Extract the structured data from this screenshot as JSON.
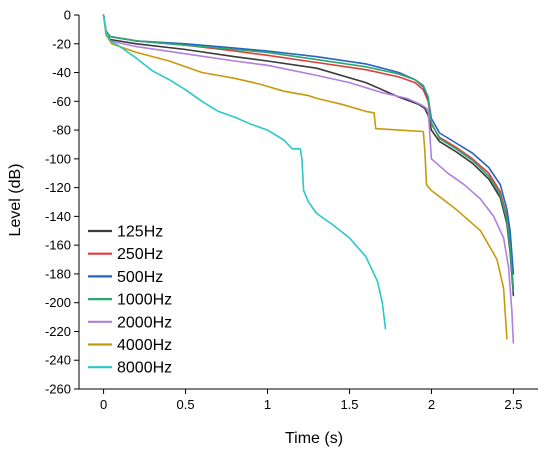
{
  "chart_data": {
    "type": "line",
    "title": "",
    "xlabel": "Time (s)",
    "ylabel": "Level (dB)",
    "xlim": [
      -0.15,
      2.65
    ],
    "ylim": [
      -260,
      0
    ],
    "xticks": [
      0,
      0.5,
      1,
      1.5,
      2,
      2.5
    ],
    "xtick_labels": [
      "0",
      "0.5",
      "1",
      "1.5",
      "2",
      "2.5"
    ],
    "yticks": [
      0,
      -20,
      -40,
      -60,
      -80,
      -100,
      -120,
      -140,
      -160,
      -180,
      -200,
      -220,
      -240,
      -260
    ],
    "ytick_labels": [
      "0",
      "-20",
      "-40",
      "-60",
      "-80",
      "-100",
      "-120",
      "-140",
      "-160",
      "-180",
      "-200",
      "-220",
      "-240",
      "-260"
    ],
    "grid": false,
    "legend_position": "bottom-left",
    "series": [
      {
        "name": "125Hz",
        "color": "#3a3a3a",
        "x": [
          0,
          0.005,
          0.015,
          0.04,
          0.2,
          0.5,
          0.8,
          1.0,
          1.3,
          1.6,
          1.8,
          1.92,
          1.96,
          1.98,
          2.0,
          2.05,
          2.15,
          2.25,
          2.35,
          2.42,
          2.46,
          2.48,
          2.5
        ],
        "y": [
          0,
          -4,
          -12,
          -17,
          -20,
          -24,
          -29,
          -32,
          -37,
          -47,
          -57,
          -62,
          -65,
          -70,
          -80,
          -88,
          -95,
          -103,
          -114,
          -127,
          -145,
          -165,
          -195
        ]
      },
      {
        "name": "250Hz",
        "color": "#e53a3a",
        "x": [
          0,
          0.005,
          0.015,
          0.04,
          0.2,
          0.5,
          0.8,
          1.0,
          1.3,
          1.6,
          1.8,
          1.9,
          1.95,
          1.98,
          2.0,
          2.05,
          2.15,
          2.25,
          2.35,
          2.42,
          2.46,
          2.48,
          2.5
        ],
        "y": [
          0,
          -4,
          -11,
          -15,
          -18,
          -21,
          -25,
          -28,
          -33,
          -38,
          -43,
          -47,
          -52,
          -60,
          -76,
          -85,
          -92,
          -100,
          -110,
          -123,
          -140,
          -160,
          -190
        ]
      },
      {
        "name": "500Hz",
        "color": "#2464c2",
        "x": [
          0,
          0.005,
          0.015,
          0.04,
          0.2,
          0.5,
          0.8,
          1.0,
          1.3,
          1.6,
          1.8,
          1.9,
          1.95,
          1.98,
          2.0,
          2.05,
          2.15,
          2.25,
          2.35,
          2.42,
          2.46,
          2.48,
          2.5
        ],
        "y": [
          0,
          -4,
          -11,
          -15,
          -18,
          -20,
          -23,
          -25,
          -29,
          -34,
          -40,
          -45,
          -50,
          -58,
          -72,
          -82,
          -89,
          -96,
          -106,
          -118,
          -135,
          -150,
          -180
        ]
      },
      {
        "name": "1000Hz",
        "color": "#2aa870",
        "x": [
          0,
          0.005,
          0.015,
          0.04,
          0.2,
          0.5,
          0.8,
          1.0,
          1.3,
          1.6,
          1.8,
          1.9,
          1.95,
          1.98,
          2.0,
          2.05,
          2.15,
          2.25,
          2.35,
          2.42,
          2.46,
          2.48,
          2.5
        ],
        "y": [
          0,
          -4,
          -11,
          -15,
          -18,
          -21,
          -24,
          -26,
          -31,
          -36,
          -41,
          -45,
          -49,
          -57,
          -75,
          -86,
          -93,
          -101,
          -112,
          -125,
          -142,
          -162,
          -192
        ]
      },
      {
        "name": "2000Hz",
        "color": "#b07fe0",
        "x": [
          0,
          0.005,
          0.015,
          0.04,
          0.2,
          0.5,
          0.8,
          1.0,
          1.3,
          1.5,
          1.7,
          1.85,
          1.93,
          1.96,
          1.98,
          2.0,
          2.1,
          2.2,
          2.3,
          2.38,
          2.44,
          2.47,
          2.49,
          2.5
        ],
        "y": [
          0,
          -4,
          -12,
          -18,
          -22,
          -27,
          -32,
          -35,
          -42,
          -47,
          -54,
          -58,
          -62,
          -64,
          -66,
          -100,
          -110,
          -118,
          -128,
          -140,
          -155,
          -175,
          -205,
          -228
        ]
      },
      {
        "name": "4000Hz",
        "color": "#c79a0c",
        "x": [
          0,
          0.005,
          0.015,
          0.05,
          0.2,
          0.4,
          0.6,
          0.8,
          0.95,
          1.1,
          1.25,
          1.3,
          1.45,
          1.6,
          1.65,
          1.66,
          1.8,
          1.95,
          1.96,
          1.97,
          2.0,
          2.15,
          2.3,
          2.4,
          2.44,
          2.46,
          2.46
        ],
        "y": [
          0,
          -4,
          -14,
          -20,
          -26,
          -32,
          -40,
          -44,
          -48,
          -53,
          -56,
          -58,
          -62,
          -67,
          -68,
          -79,
          -80,
          -81,
          -95,
          -118,
          -122,
          -135,
          -150,
          -170,
          -190,
          -225,
          -225
        ]
      },
      {
        "name": "8000Hz",
        "color": "#2ac8c8",
        "x": [
          0,
          0.005,
          0.015,
          0.04,
          0.1,
          0.2,
          0.3,
          0.4,
          0.5,
          0.6,
          0.7,
          0.8,
          0.9,
          1.0,
          1.1,
          1.15,
          1.2,
          1.21,
          1.22,
          1.25,
          1.3,
          1.4,
          1.5,
          1.6,
          1.67,
          1.7,
          1.72,
          1.72
        ],
        "y": [
          0,
          -4,
          -12,
          -18,
          -22,
          -30,
          -39,
          -45,
          -52,
          -60,
          -67,
          -71,
          -76,
          -80,
          -87,
          -93,
          -93,
          -100,
          -122,
          -130,
          -138,
          -146,
          -155,
          -168,
          -185,
          -200,
          -218,
          -218
        ]
      }
    ]
  }
}
